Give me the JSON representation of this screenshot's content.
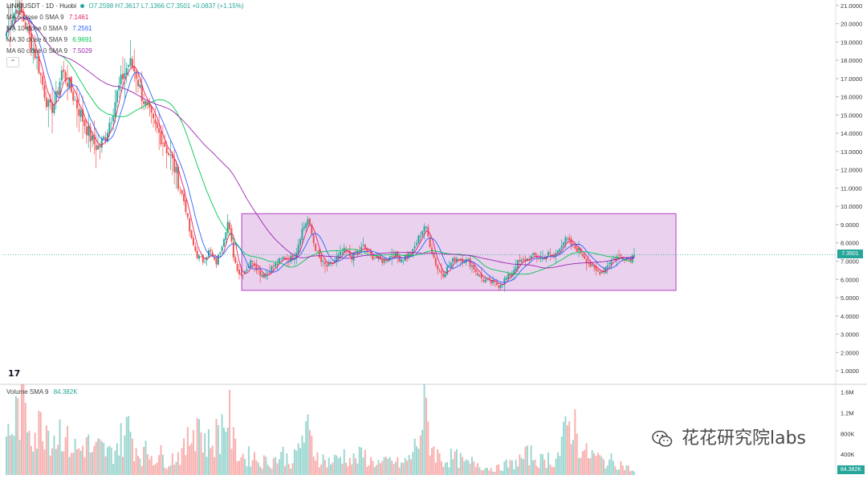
{
  "header": {
    "symbol": "LINK/USDT · 1D · Huobi",
    "ohlc": "O7.2598 H7.3617 L7.1366 C7.3501 +0.0837 (+1.15%)"
  },
  "ma_legend": [
    {
      "label": "MA 5 close 0 SMA 9",
      "value": "7.1461",
      "color": "#e91e63"
    },
    {
      "label": "MA 10 close 0 SMA 9",
      "value": "7.2561",
      "color": "#2962ff"
    },
    {
      "label": "MA 30 close 0 SMA 9",
      "value": "6.9691",
      "color": "#00c853"
    },
    {
      "label": "MA 60 close 0 SMA 9",
      "value": "7.5029",
      "color": "#9c27b0"
    }
  ],
  "volume_legend": {
    "label": "Volume SMA 9",
    "value": "84.382K"
  },
  "collapse_icon": "chevron-up-icon",
  "logo_text": "17",
  "last_price_label": "7.3501",
  "last_volume_label": "84.382K",
  "watermark": "花花研究院labs",
  "colors": {
    "up": "#26a69a",
    "down": "#ef5350",
    "ma5": "#e91e63",
    "ma10": "#2962ff",
    "ma30": "#00c853",
    "ma60": "#9c27b0",
    "box_fill": "rgba(186, 104, 200, 0.30)",
    "box_stroke": "#b040c0"
  },
  "chart_data": {
    "type": "candlestick",
    "title": "LINK/USDT · 1D · Huobi",
    "price_axis_ticks": [
      "21.0000",
      "20.0000",
      "19.0000",
      "18.0000",
      "17.0000",
      "16.0000",
      "15.0000",
      "14.0000",
      "13.0000",
      "12.0000",
      "11.0000",
      "10.0000",
      "9.0000",
      "8.0000",
      "7.0000",
      "6.0000",
      "5.0000",
      "4.0000",
      "3.0000",
      "2.0000",
      "1.0000"
    ],
    "volume_axis_ticks": [
      "1.6M",
      "1.2M",
      "800K",
      "400K"
    ],
    "ylim": [
      0.3,
      21.3
    ],
    "volume_ylim": [
      0,
      1750000
    ],
    "last_close": 7.3501,
    "range_box": {
      "top": 9.6,
      "bottom": 5.4,
      "x_start_fraction": 0.38,
      "x_end_fraction": 1.0
    },
    "close_path": [
      19.5,
      20.5,
      21.0,
      20.0,
      19.0,
      18.0,
      16.5,
      15.2,
      15.8,
      17.4,
      16.8,
      15.9,
      15.1,
      14.3,
      13.5,
      13.2,
      13.8,
      14.9,
      16.2,
      17.2,
      17.9,
      17.3,
      16.1,
      15.2,
      14.4,
      13.9,
      13.2,
      12.4,
      11.3,
      10.1,
      8.2,
      7.3,
      7.0,
      7.6,
      6.8,
      7.9,
      9.2,
      7.1,
      6.2,
      6.6,
      7.1,
      6.4,
      6.2,
      6.6,
      6.9,
      7.2,
      7.1,
      7.4,
      8.7,
      9.3,
      7.9,
      7.0,
      6.7,
      6.9,
      7.3,
      7.6,
      7.2,
      7.5,
      7.8,
      7.3,
      7.2,
      7.0,
      7.2,
      7.4,
      7.1,
      7.3,
      7.5,
      8.3,
      9.0,
      7.7,
      6.6,
      6.3,
      6.8,
      7.2,
      7.1,
      7.0,
      6.6,
      6.1,
      5.9,
      5.8,
      5.7,
      6.0,
      6.3,
      6.9,
      7.0,
      7.2,
      7.3,
      7.1,
      7.4,
      7.2,
      7.9,
      8.2,
      7.8,
      7.6,
      7.2,
      6.7,
      6.4,
      6.5,
      7.0,
      7.2,
      7.3,
      7.1,
      7.35
    ],
    "volume_profile": [
      0.55,
      0.7,
      0.95,
      1.0,
      0.75,
      0.6,
      0.85,
      0.65,
      0.55,
      0.7,
      0.45,
      0.4,
      0.35,
      0.5,
      0.3,
      0.4,
      0.35,
      0.3,
      0.45,
      0.55,
      0.7,
      0.4,
      0.3,
      0.35,
      0.25,
      0.3,
      0.2,
      0.25,
      0.3,
      0.35,
      0.6,
      0.9,
      0.5,
      0.45,
      0.55,
      0.7,
      0.95,
      0.4,
      0.3,
      0.25,
      0.3,
      0.2,
      0.2,
      0.2,
      0.25,
      0.3,
      0.2,
      0.25,
      0.55,
      0.6,
      0.35,
      0.25,
      0.2,
      0.2,
      0.25,
      0.3,
      0.2,
      0.25,
      0.3,
      0.2,
      0.2,
      0.15,
      0.2,
      0.2,
      0.15,
      0.2,
      0.3,
      0.55,
      0.95,
      0.45,
      0.3,
      0.2,
      0.25,
      0.25,
      0.2,
      0.15,
      0.2,
      0.15,
      0.1,
      0.1,
      0.1,
      0.15,
      0.15,
      0.2,
      0.25,
      0.3,
      0.25,
      0.2,
      0.25,
      0.2,
      0.35,
      0.65,
      0.85,
      0.5,
      0.3,
      0.3,
      0.25,
      0.2,
      0.2,
      0.2,
      0.15,
      0.1,
      0.05
    ]
  }
}
